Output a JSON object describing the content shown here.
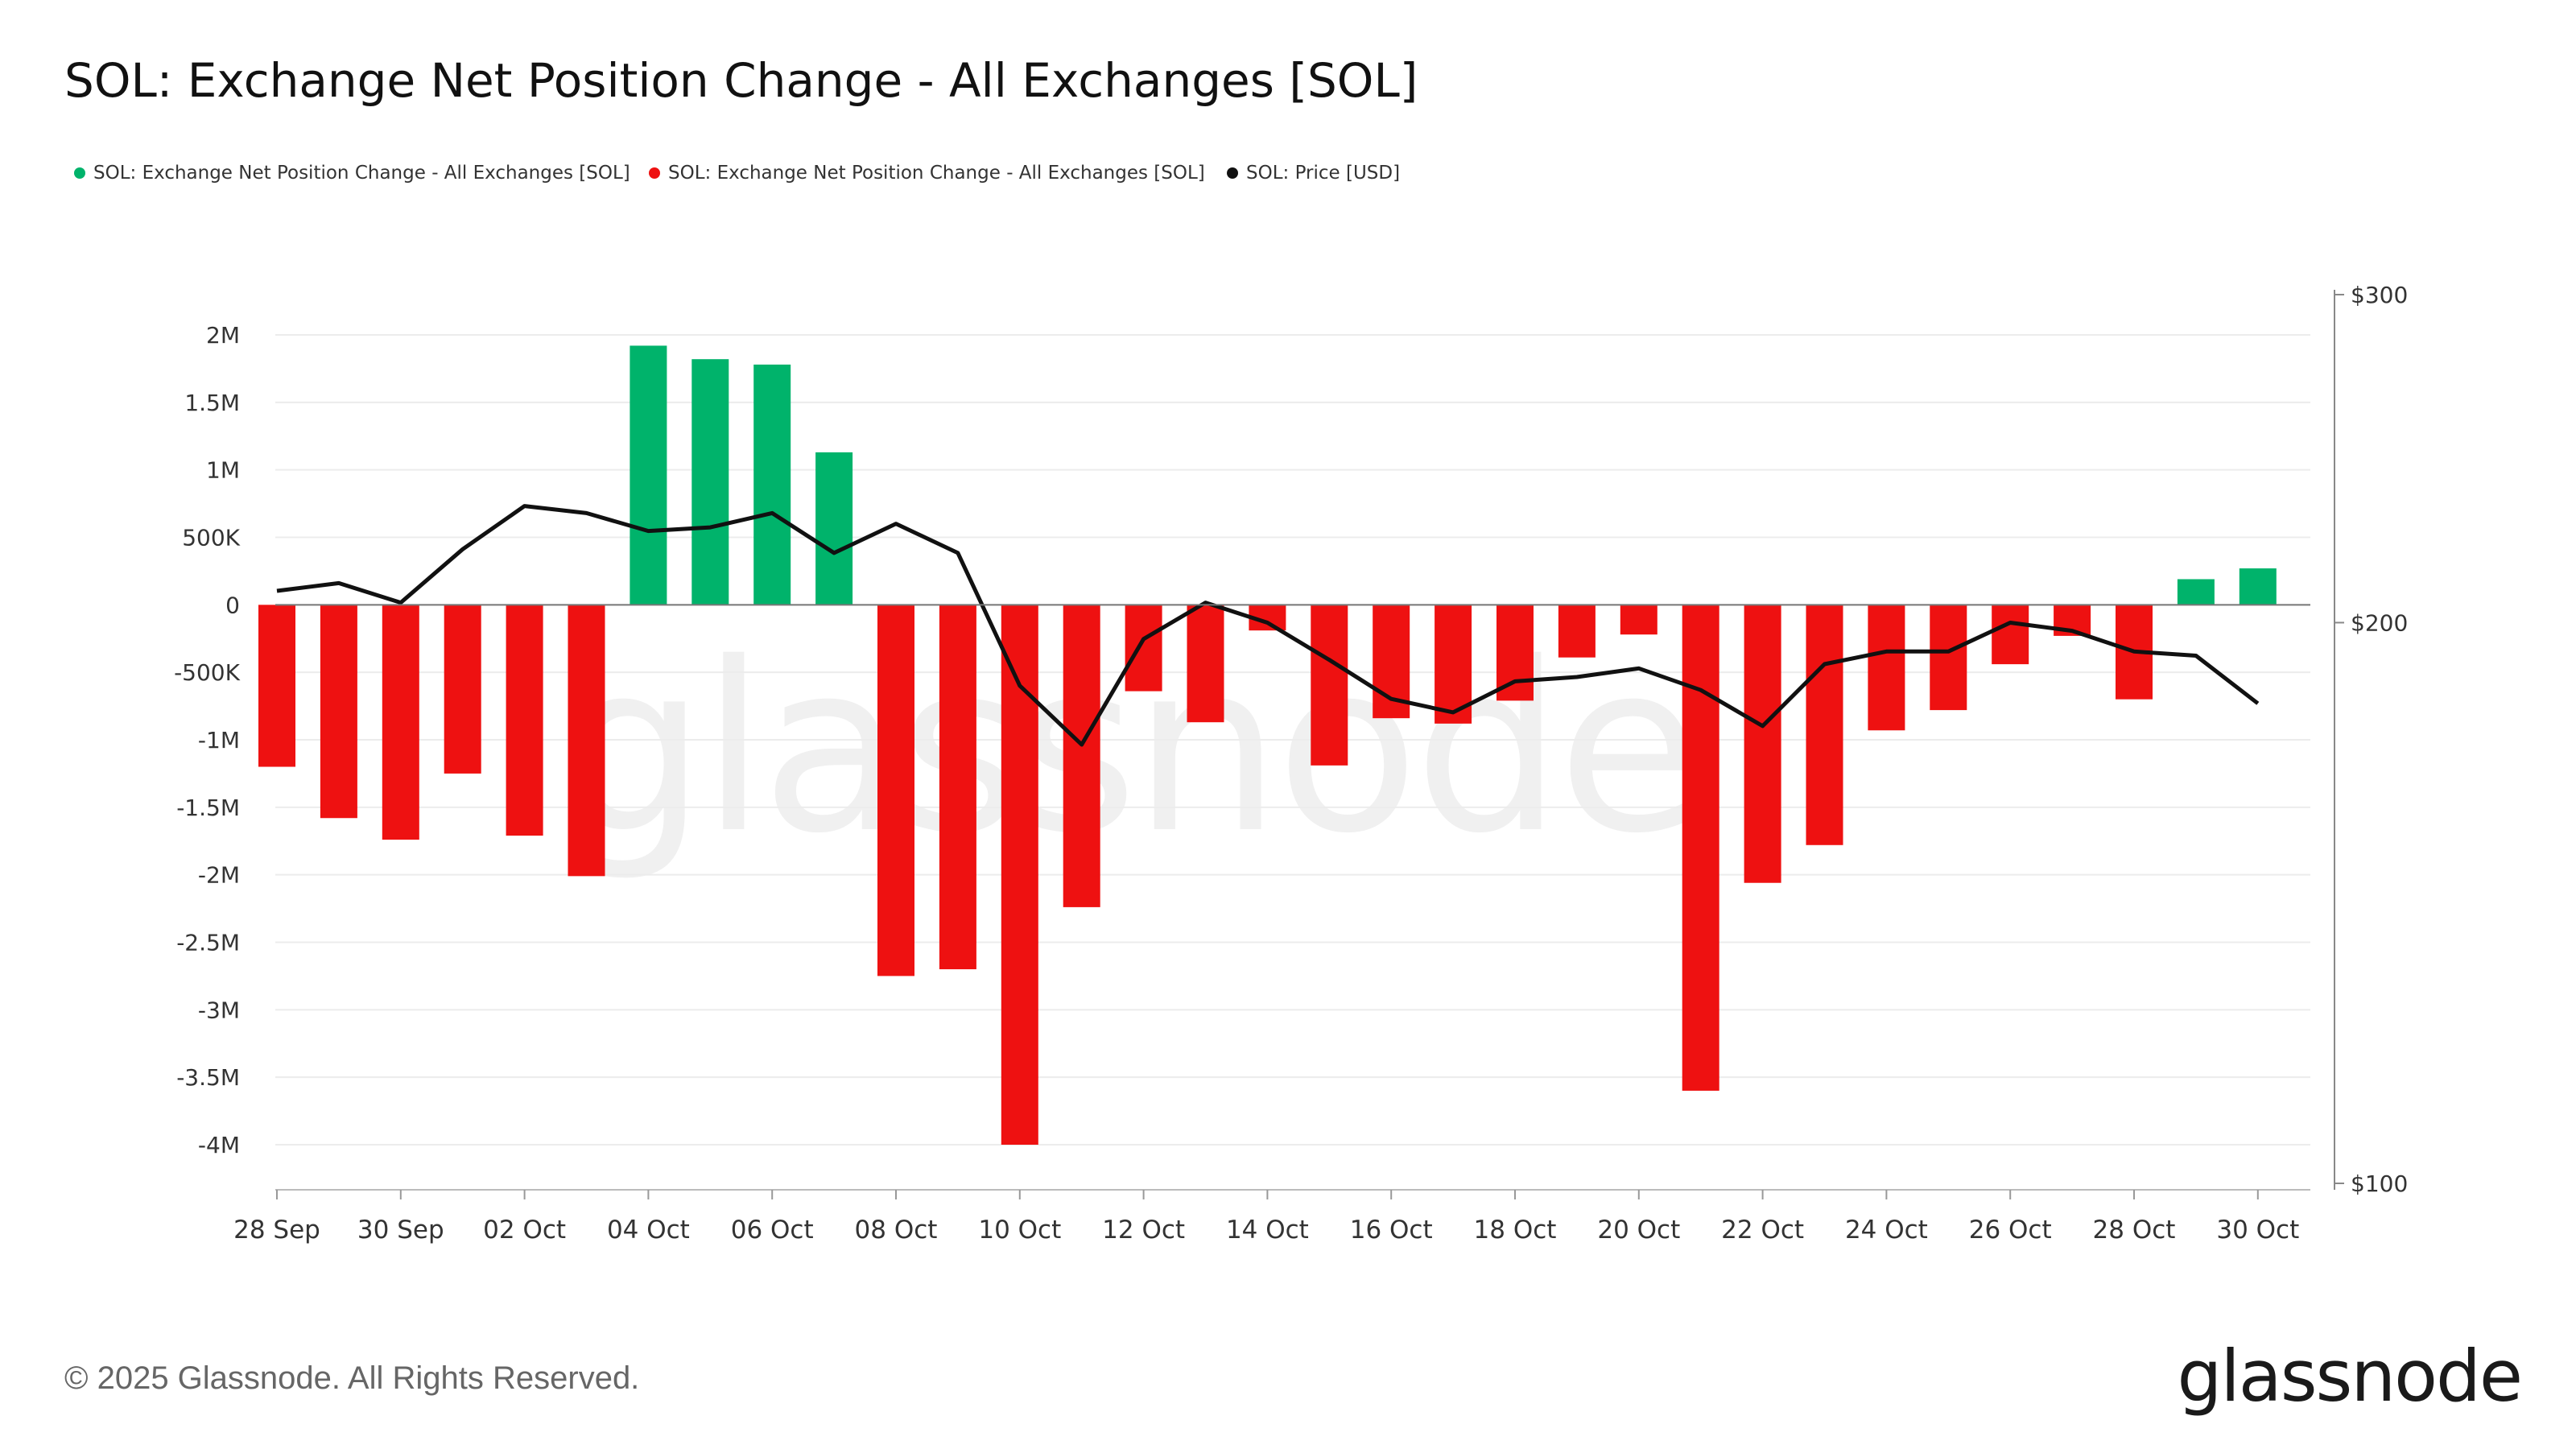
{
  "chart_data": {
    "type": "bar",
    "title": "SOL: Exchange Net Position Change - All Exchanges [SOL]",
    "legend": {
      "placement": "top-left",
      "entries": [
        {
          "label": "SOL: Exchange Net Position Change - All Exchanges [SOL]",
          "color": "#00b36b"
        },
        {
          "label": "SOL: Exchange Net Position Change - All Exchanges [SOL]",
          "color": "#ee1111"
        },
        {
          "label": "SOL: Price [USD]",
          "color": "#111111"
        }
      ]
    },
    "categories": [
      "28 Sep",
      "29 Sep",
      "30 Sep",
      "01 Oct",
      "02 Oct",
      "03 Oct",
      "04 Oct",
      "05 Oct",
      "06 Oct",
      "07 Oct",
      "08 Oct",
      "09 Oct",
      "10 Oct",
      "11 Oct",
      "12 Oct",
      "13 Oct",
      "14 Oct",
      "15 Oct",
      "16 Oct",
      "17 Oct",
      "18 Oct",
      "19 Oct",
      "20 Oct",
      "21 Oct",
      "22 Oct",
      "23 Oct",
      "24 Oct",
      "25 Oct",
      "26 Oct",
      "27 Oct",
      "28 Oct",
      "29 Oct",
      "30 Oct"
    ],
    "x_tick_labels": [
      "28 Sep",
      "30 Sep",
      "02 Oct",
      "04 Oct",
      "06 Oct",
      "08 Oct",
      "10 Oct",
      "12 Oct",
      "14 Oct",
      "16 Oct",
      "18 Oct",
      "20 Oct",
      "22 Oct",
      "24 Oct",
      "26 Oct",
      "28 Oct",
      "30 Oct"
    ],
    "series": [
      {
        "name": "SOL: Exchange Net Position Change - All Exchanges [SOL]",
        "axis": "left",
        "positive_color": "#00b36b",
        "negative_color": "#ee1111",
        "values": [
          -1200000,
          -1580000,
          -1740000,
          -1250000,
          -1710000,
          -2010000,
          1920000,
          1820000,
          1780000,
          1130000,
          -2750000,
          -2700000,
          -4000000,
          -2240000,
          -640000,
          -870000,
          -190000,
          -1190000,
          -840000,
          -880000,
          -710000,
          -390000,
          -220000,
          -3600000,
          -2060000,
          -1780000,
          -930000,
          -780000,
          -440000,
          -230000,
          -700000,
          190000,
          270000
        ]
      },
      {
        "name": "SOL: Price [USD]",
        "axis": "right",
        "type": "line",
        "color": "#111111",
        "values": [
          208,
          210,
          205,
          219,
          231,
          229,
          224,
          225,
          229,
          218,
          226,
          218,
          185,
          172,
          196,
          205,
          200,
          191,
          182,
          179,
          186,
          187,
          189,
          184,
          176,
          190,
          193,
          193,
          200,
          198,
          193,
          192,
          181
        ]
      }
    ],
    "y_left": {
      "min": -4000000,
      "max": 2000000,
      "step": 500000,
      "tick_labels": [
        "2M",
        "1.5M",
        "1M",
        "500K",
        "0",
        "-500K",
        "-1M",
        "-1.5M",
        "-2M",
        "-2.5M",
        "-3M",
        "-3.5M",
        "-4M"
      ]
    },
    "y_right": {
      "scale": "log",
      "min": 100,
      "max": 300,
      "tick_labels": [
        "$300",
        "$200",
        "$100"
      ]
    },
    "grid": true,
    "watermark": "glassnode"
  },
  "footer": {
    "copyright": "© 2025 Glassnode. All Rights Reserved.",
    "brand": "glassnode"
  }
}
